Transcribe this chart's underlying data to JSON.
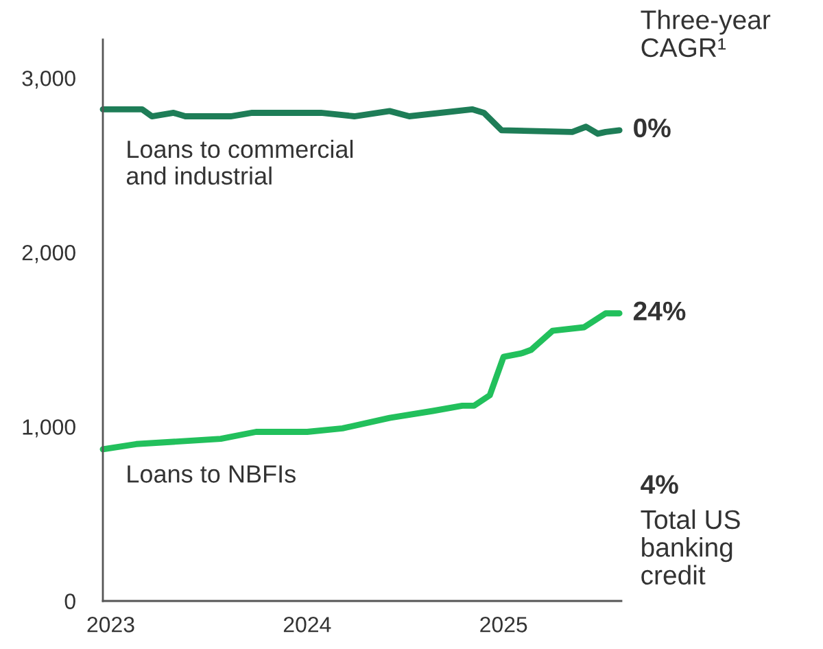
{
  "chart_data": {
    "type": "line",
    "xlim": [
      2022.96,
      2025.6
    ],
    "xticks": [
      2023,
      2024,
      2025
    ],
    "ylim": [
      0,
      3220
    ],
    "yticks": [
      {
        "value": 0,
        "label": "0"
      },
      {
        "value": 1000,
        "label": "1,000"
      },
      {
        "value": 2000,
        "label": "2,000"
      },
      {
        "value": 3000,
        "label": "3,000"
      }
    ],
    "grid": false,
    "legend": false,
    "series": [
      {
        "name": "Loans to commercial\nand industrial",
        "color": "#1e7d57",
        "x": [
          2022.96,
          2023.16,
          2023.21,
          2023.32,
          2023.38,
          2023.61,
          2023.72,
          2024.07,
          2024.24,
          2024.42,
          2024.52,
          2024.84,
          2024.9,
          2024.99,
          2025.35,
          2025.42,
          2025.48,
          2025.52,
          2025.59
        ],
        "values": [
          2820,
          2820,
          2780,
          2800,
          2780,
          2780,
          2800,
          2800,
          2780,
          2810,
          2780,
          2820,
          2800,
          2700,
          2690,
          2720,
          2680,
          2690,
          2700
        ]
      },
      {
        "name": "Loans to NBFIs",
        "color": "#22c05c",
        "x": [
          2022.96,
          2023.13,
          2023.56,
          2023.74,
          2024.0,
          2024.18,
          2024.42,
          2024.64,
          2024.79,
          2024.85,
          2024.93,
          2025.0,
          2025.09,
          2025.14,
          2025.25,
          2025.41,
          2025.52,
          2025.59
        ],
        "values": [
          870,
          900,
          930,
          970,
          970,
          990,
          1050,
          1090,
          1120,
          1120,
          1180,
          1400,
          1420,
          1440,
          1550,
          1570,
          1650,
          1650
        ]
      }
    ],
    "annotations": [
      "Three-year\nCAGR¹",
      {
        "text": "0%",
        "x": 2025.59,
        "y": 2700
      },
      {
        "text": "24%",
        "x": 2025.59,
        "y": 1650
      },
      "4%",
      "Total US\nbanking\ncredit"
    ]
  }
}
